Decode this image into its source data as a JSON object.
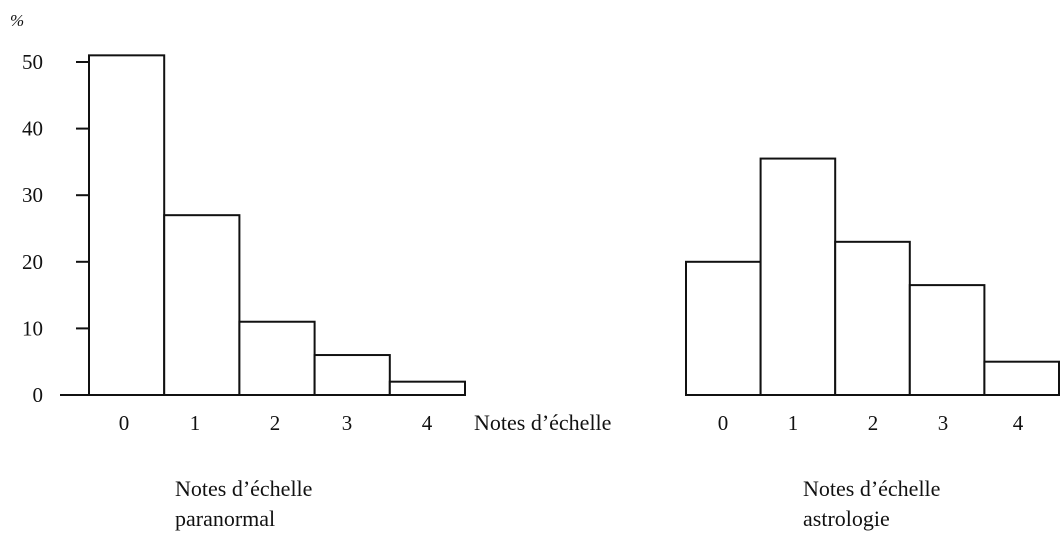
{
  "chart_data": [
    {
      "type": "bar",
      "categories": [
        "0",
        "1",
        "2",
        "3",
        "4"
      ],
      "values": [
        51,
        27,
        11,
        6,
        2
      ],
      "ylim": [
        0,
        50
      ],
      "yticks": [
        0,
        10,
        20,
        30,
        40,
        50
      ],
      "yunit": "%",
      "xlabel_line1": "Notes d’échelle",
      "xlabel_line2": "paranormal",
      "grid": false
    },
    {
      "type": "bar",
      "categories": [
        "0",
        "1",
        "2",
        "3",
        "4"
      ],
      "values": [
        20,
        35.5,
        23,
        16.5,
        5
      ],
      "ylim": [
        0,
        50
      ],
      "xlabel_line1": "Notes d’échelle",
      "xlabel_line2": "astrologie",
      "grid": false
    }
  ],
  "center_label": "Notes d’échelle",
  "colors": {
    "bar_fill": "#ffffff",
    "stroke": "#111111"
  }
}
